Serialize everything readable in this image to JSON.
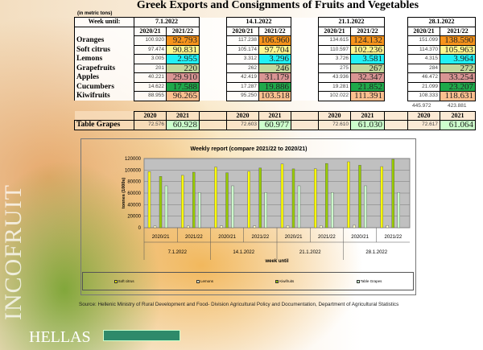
{
  "title": "Greek Exports and Consignments of Fruits and Vegetables",
  "unit": "(in metric tons)",
  "week_label": "Week until:",
  "weeks": [
    "7.1.2022",
    "14.1.2022",
    "21.1.2022",
    "28.1.2022"
  ],
  "seasons": [
    "2020/21",
    "2021/22"
  ],
  "products": [
    {
      "name": "Oranges",
      "color": "#f7941d",
      "values": [
        [
          "100.920",
          "92.793"
        ],
        [
          "117.238",
          "106.960"
        ],
        [
          "134.615",
          "124.132"
        ],
        [
          "151.099",
          "138.590"
        ]
      ]
    },
    {
      "name": "Soft citrus",
      "color": "#fff68f",
      "values": [
        [
          "97.474",
          "90.831"
        ],
        [
          "105.174",
          "97.704"
        ],
        [
          "110.597",
          "102.236"
        ],
        [
          "114.370",
          "105.963"
        ]
      ]
    },
    {
      "name": "Lemons",
      "color": "#22f0f5",
      "values": [
        [
          "3.005",
          "2.955"
        ],
        [
          "3.312",
          "3.296"
        ],
        [
          "3.726",
          "3.581"
        ],
        [
          "4.315",
          "3.964"
        ]
      ]
    },
    {
      "name": "Grapefruits",
      "color": "#c3d69b",
      "values": [
        [
          "201",
          "220"
        ],
        [
          "262",
          "246"
        ],
        [
          "275",
          "267"
        ],
        [
          "284",
          "272"
        ]
      ]
    },
    {
      "name": "Apples",
      "color": "#d99594",
      "values": [
        [
          "40.221",
          "29.910"
        ],
        [
          "42.419",
          "31.179"
        ],
        [
          "43.936",
          "32.347"
        ],
        [
          "46.472",
          "33.254"
        ]
      ]
    },
    {
      "name": "Cucumbers",
      "color": "#1fa84a",
      "values": [
        [
          "14.622",
          "17.588"
        ],
        [
          "17.287",
          "19.886"
        ],
        [
          "19.281",
          "21.852"
        ],
        [
          "21.099",
          "23.207"
        ]
      ]
    },
    {
      "name": "Kiwifruits",
      "color": "#fbbf8f",
      "values": [
        [
          "88.955",
          "96.265"
        ],
        [
          "95.250",
          "103.518"
        ],
        [
          "102.022",
          "111.391"
        ],
        [
          "108.333",
          "118.631"
        ]
      ]
    }
  ],
  "totals": [
    "445.972",
    "423.881"
  ],
  "grapes": {
    "name": "Table Grapes",
    "years": [
      "2020",
      "2021"
    ],
    "color": "#ccffcc",
    "values": [
      [
        "72.576",
        "60.928"
      ],
      [
        "72.603",
        "60.977"
      ],
      [
        "72.610",
        "61.030"
      ],
      [
        "72.617",
        "61.064"
      ]
    ]
  },
  "chart_data": {
    "type": "bar",
    "title": "Weekly report (compare 2021/22 to 2020/21)",
    "xlabel": "week until",
    "ylabel": "tonnes (1000s)",
    "ylim": [
      0,
      120000
    ],
    "yticks": [
      "0",
      "20000",
      "40000",
      "60000",
      "80000",
      "100000",
      "120000"
    ],
    "groups": [
      "7.1.2022",
      "14.1.2022",
      "21.1.2022",
      "28.1.2022"
    ],
    "categories": [
      "2020/21",
      "2021/22",
      "2020/21",
      "2021/22",
      "2020/21",
      "2021/22",
      "2020/21",
      "2021/22"
    ],
    "series": [
      {
        "name": "Soft citrus",
        "color": "#ffff00",
        "values": [
          97474,
          90831,
          105174,
          97704,
          110597,
          102236,
          114370,
          105963
        ]
      },
      {
        "name": "Lemons",
        "color": "#ffffcc",
        "values": [
          3005,
          2955,
          3312,
          3296,
          3726,
          3581,
          4315,
          3964
        ]
      },
      {
        "name": "Kiwifruits",
        "color": "#99cc00",
        "values": [
          88955,
          96265,
          95250,
          103518,
          102022,
          111391,
          108333,
          118631
        ]
      },
      {
        "name": "Table Grapes",
        "color": "#ccffcc",
        "values": [
          72576,
          60928,
          72603,
          60977,
          72610,
          61030,
          72617,
          61064
        ]
      }
    ]
  },
  "source": "Source: Hellenic Ministry of Rural Development and Food- Division Agricultural Policy and Documentation, Department of Agricultural Statistics",
  "logo_vertical": "INCOFRUIT",
  "logo": "HELLAS"
}
